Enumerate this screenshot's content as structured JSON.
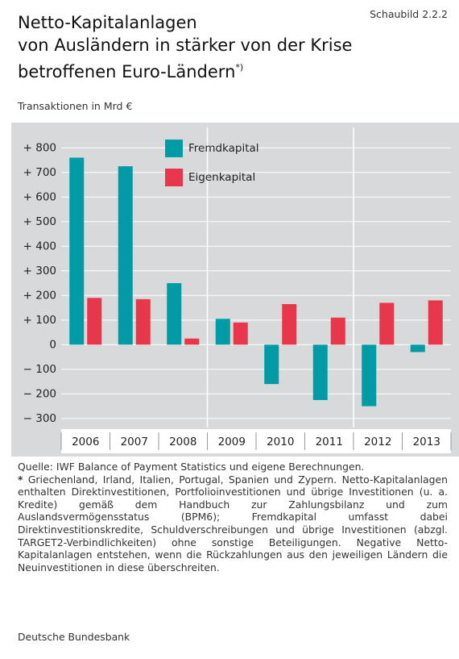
{
  "chart_data": {
    "type": "bar",
    "figure_label": "Schaubild 2.2.2",
    "title": [
      "Netto-Kapitalanlagen",
      "von Ausländern in stärker von der Krise",
      "betroffenen Euro-Ländern"
    ],
    "title_note": "*)",
    "subtitle": "Transaktionen in Mrd €",
    "categories": [
      "2006",
      "2007",
      "2008",
      "2009",
      "2010",
      "2011",
      "2012",
      "2013"
    ],
    "series": [
      {
        "name": "Fremdkapital",
        "color": "#009ba4",
        "values": [
          760,
          725,
          250,
          105,
          -160,
          -225,
          -250,
          -30
        ]
      },
      {
        "name": "Eigenkapital",
        "color": "#e8374a",
        "values": [
          190,
          185,
          25,
          90,
          165,
          110,
          170,
          180
        ]
      }
    ],
    "ylim": [
      -330,
      850
    ],
    "yticks": [
      {
        "value": 800,
        "label": "+ 800"
      },
      {
        "value": 700,
        "label": "+ 700"
      },
      {
        "value": 600,
        "label": "+ 600"
      },
      {
        "value": 500,
        "label": "+ 500"
      },
      {
        "value": 400,
        "label": "+ 400"
      },
      {
        "value": 300,
        "label": "+ 300"
      },
      {
        "value": 200,
        "label": "+ 200"
      },
      {
        "value": 100,
        "label": "+ 100"
      },
      0,
      {
        "value": -100,
        "label": "− 100"
      },
      {
        "value": -200,
        "label": "− 200"
      },
      {
        "value": -300,
        "label": "− 300"
      }
    ],
    "grid": true,
    "source": "Quelle: IWF Balance of Payment Statistics und eigene Berechnungen.",
    "footnote_marker": "*",
    "footnote": "Griechenland, Irland, Italien, Portugal, Spanien und Zypern. Netto-Kapitalanlagen enthalten Direktinvestitionen, Portfolioinvestitionen und übrige Investitionen (u. a. Kredite) gemäß dem Handbuch zur Zahlungsbilanz und zum Auslandsvermögensstatus (BPM6); Fremdkapital umfasst dabei Direktinvestitionskredite, Schuldverschreibungen und übrige Investitionen (abzgl. TARGET2-Verbindlichkeiten) ohne sonstige Beteiligungen. Negative Netto-Kapitalanlagen entstehen, wenn die Rückzahlungen aus den jeweiligen Ländern die Neuinvestitionen in diese überschreiten.",
    "publisher": "Deutsche Bundesbank"
  }
}
